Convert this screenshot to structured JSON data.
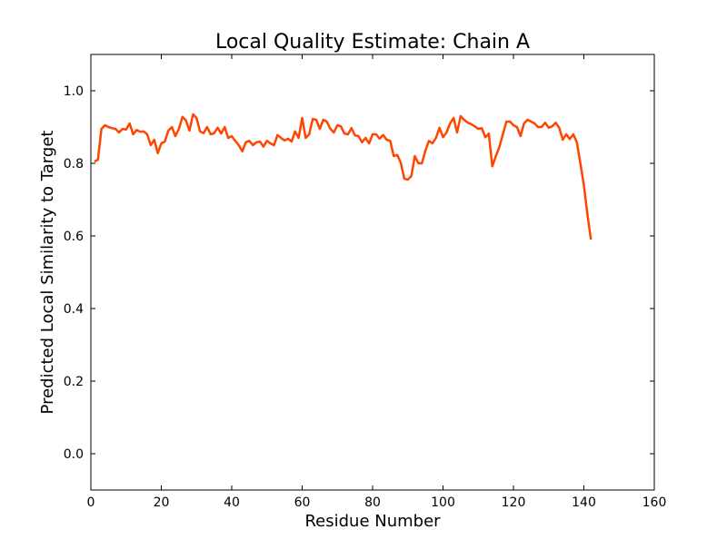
{
  "chart_data": {
    "type": "line",
    "title": "Local Quality Estimate: Chain A",
    "xlabel": "Residue Number",
    "ylabel": "Predicted Local Similarity to Target",
    "xlim": [
      0,
      160
    ],
    "ylim": [
      -0.1,
      1.1
    ],
    "x_ticks": [
      0,
      20,
      40,
      60,
      80,
      100,
      120,
      140,
      160
    ],
    "y_ticks": [
      0.0,
      0.2,
      0.4,
      0.6,
      0.8,
      1.0
    ],
    "x_tick_labels": [
      "0",
      "20",
      "40",
      "60",
      "80",
      "100",
      "120",
      "140",
      "160"
    ],
    "y_tick_labels": [
      "0.0",
      "0.2",
      "0.4",
      "0.6",
      "0.8",
      "1.0"
    ],
    "grid": false,
    "legend": "none",
    "series": [
      {
        "color": "#ff4500",
        "x": [
          1,
          2,
          3,
          4,
          5,
          6,
          7,
          8,
          9,
          10,
          11,
          12,
          13,
          14,
          15,
          16,
          17,
          18,
          19,
          20,
          21,
          22,
          23,
          24,
          25,
          26,
          27,
          28,
          29,
          30,
          31,
          32,
          33,
          34,
          35,
          36,
          37,
          38,
          39,
          40,
          41,
          42,
          43,
          44,
          45,
          46,
          47,
          48,
          49,
          50,
          51,
          52,
          53,
          54,
          55,
          56,
          57,
          58,
          59,
          60,
          61,
          62,
          63,
          64,
          65,
          66,
          67,
          68,
          69,
          70,
          71,
          72,
          73,
          74,
          75,
          76,
          77,
          78,
          79,
          80,
          81,
          82,
          83,
          84,
          85,
          86,
          87,
          88,
          89,
          90,
          91,
          92,
          93,
          94,
          95,
          96,
          97,
          98,
          99,
          100,
          101,
          102,
          103,
          104,
          105,
          106,
          107,
          108,
          109,
          110,
          111,
          112,
          113,
          114,
          115,
          116,
          117,
          118,
          119,
          120,
          121,
          122,
          123,
          124,
          125,
          126,
          127,
          128,
          129,
          130,
          131,
          132,
          133,
          134,
          135,
          136,
          137,
          138,
          139,
          140,
          141,
          142
        ],
        "values": [
          0.805,
          0.81,
          0.895,
          0.905,
          0.9,
          0.897,
          0.895,
          0.885,
          0.895,
          0.893,
          0.91,
          0.88,
          0.892,
          0.887,
          0.888,
          0.88,
          0.85,
          0.865,
          0.828,
          0.855,
          0.86,
          0.89,
          0.9,
          0.875,
          0.895,
          0.928,
          0.918,
          0.89,
          0.935,
          0.925,
          0.888,
          0.883,
          0.9,
          0.88,
          0.883,
          0.898,
          0.882,
          0.9,
          0.87,
          0.875,
          0.862,
          0.85,
          0.833,
          0.858,
          0.862,
          0.85,
          0.858,
          0.86,
          0.846,
          0.862,
          0.855,
          0.85,
          0.878,
          0.87,
          0.863,
          0.868,
          0.86,
          0.888,
          0.87,
          0.925,
          0.87,
          0.88,
          0.922,
          0.92,
          0.895,
          0.92,
          0.915,
          0.895,
          0.885,
          0.905,
          0.902,
          0.882,
          0.88,
          0.897,
          0.877,
          0.875,
          0.858,
          0.87,
          0.855,
          0.88,
          0.88,
          0.868,
          0.878,
          0.865,
          0.862,
          0.82,
          0.823,
          0.802,
          0.758,
          0.755,
          0.765,
          0.82,
          0.8,
          0.8,
          0.835,
          0.862,
          0.855,
          0.87,
          0.898,
          0.872,
          0.885,
          0.91,
          0.925,
          0.885,
          0.93,
          0.92,
          0.912,
          0.908,
          0.902,
          0.895,
          0.897,
          0.872,
          0.882,
          0.792,
          0.82,
          0.845,
          0.88,
          0.915,
          0.915,
          0.905,
          0.9,
          0.875,
          0.91,
          0.92,
          0.915,
          0.91,
          0.9,
          0.9,
          0.912,
          0.898,
          0.902,
          0.912,
          0.898,
          0.865,
          0.88,
          0.867,
          0.88,
          0.858,
          0.8,
          0.74,
          0.66,
          0.59
        ]
      }
    ]
  }
}
